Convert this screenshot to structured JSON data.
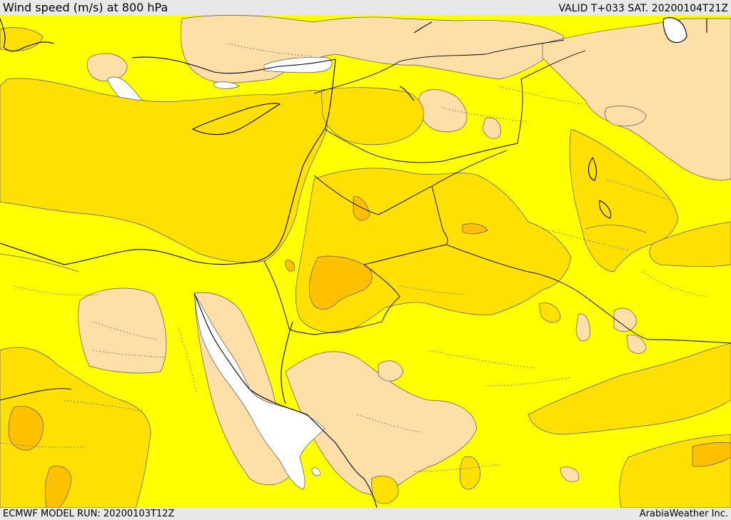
{
  "header": {
    "title": "Wind speed (m/s) at 800 hPa",
    "valid": "VALID T+033 SAT. 20200104T21Z"
  },
  "footer": {
    "model_run": "ECMWF MODEL RUN: 20200103T12Z",
    "credit": "ArabiaWeather Inc."
  },
  "map": {
    "field": "wind speed",
    "level": "800 hPa",
    "colors": {
      "white": "#ffffff",
      "peach": "#ffdfa8",
      "yellow": "#ffff00",
      "gold": "#ffe000",
      "orange": "#ffc000",
      "dark_orange": "#ffa000"
    }
  }
}
